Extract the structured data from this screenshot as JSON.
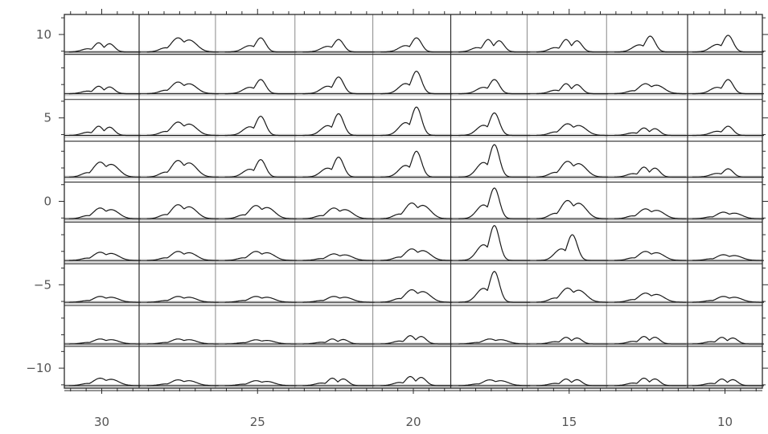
{
  "chart_data": {
    "type": "line",
    "title": "",
    "xlabel": "",
    "ylabel": "",
    "xlim": [
      31.2,
      8.8
    ],
    "ylim": [
      -11.2,
      11.2
    ],
    "x_reversed": true,
    "grid": true,
    "x_ticks": [
      {
        "value": 30,
        "label": "30"
      },
      {
        "value": 25,
        "label": "25"
      },
      {
        "value": 20,
        "label": "20"
      },
      {
        "value": 15,
        "label": "15"
      },
      {
        "value": 10,
        "label": "10"
      }
    ],
    "y_ticks": [
      {
        "value": 10,
        "label": "10"
      },
      {
        "value": 5,
        "label": "5"
      },
      {
        "value": 0,
        "label": "0"
      },
      {
        "value": -5,
        "label": "−5"
      },
      {
        "value": -10,
        "label": "−10"
      }
    ],
    "grid_cols": [
      28.8,
      26.35,
      23.8,
      21.3,
      18.8,
      16.35,
      13.8,
      11.2
    ],
    "grid_rows": [
      8.95,
      6.25,
      3.75,
      1.3,
      -1.1,
      -3.6,
      -6.1,
      -8.55,
      -11.2
    ],
    "panel_x": [
      29.9,
      27.4,
      24.9,
      22.4,
      19.9,
      17.4,
      14.9,
      12.4,
      9.9
    ],
    "panel_y": [
      8.95,
      6.45,
      3.95,
      1.45,
      -1.05,
      -3.55,
      -6.05,
      -8.55,
      -11.05
    ],
    "peak_height": [
      [
        0.55,
        0.85,
        0.85,
        0.75,
        0.85,
        0.75,
        0.75,
        0.95,
        1.0
      ],
      [
        0.45,
        0.7,
        0.85,
        1.0,
        1.35,
        0.85,
        0.6,
        0.6,
        0.85
      ],
      [
        0.55,
        0.8,
        1.15,
        1.3,
        1.7,
        1.35,
        0.7,
        0.45,
        0.55
      ],
      [
        0.9,
        1.0,
        1.05,
        1.2,
        1.55,
        1.95,
        0.95,
        0.6,
        0.5
      ],
      [
        0.65,
        0.85,
        0.8,
        0.65,
        0.95,
        1.85,
        1.1,
        0.6,
        0.4
      ],
      [
        0.5,
        0.55,
        0.55,
        0.4,
        0.7,
        2.1,
        1.55,
        0.55,
        0.35
      ],
      [
        0.35,
        0.35,
        0.35,
        0.35,
        0.75,
        1.85,
        0.85,
        0.55,
        0.35
      ],
      [
        0.3,
        0.3,
        0.25,
        0.3,
        0.5,
        0.3,
        0.4,
        0.45,
        0.4
      ],
      [
        0.45,
        0.35,
        0.3,
        0.45,
        0.55,
        0.35,
        0.4,
        0.45,
        0.4
      ]
    ],
    "peak_shape": [
      [
        "double",
        "broad",
        "single",
        "single",
        "single",
        "double",
        "double",
        "single",
        "single"
      ],
      [
        "double",
        "broad",
        "single",
        "single",
        "single",
        "single",
        "double",
        "broad",
        "single"
      ],
      [
        "double",
        "broad",
        "single",
        "single",
        "single",
        "single",
        "broad",
        "double",
        "single"
      ],
      [
        "broad",
        "broad",
        "single",
        "single",
        "single",
        "single",
        "broad",
        "double",
        "single"
      ],
      [
        "broad",
        "broad",
        "broad",
        "broad",
        "broad",
        "single",
        "broad",
        "broad",
        "broad"
      ],
      [
        "broad",
        "broad",
        "broad",
        "broad",
        "broad",
        "single",
        "single",
        "broad",
        "broad"
      ],
      [
        "broad",
        "broad",
        "broad",
        "broad",
        "broad",
        "single",
        "broad",
        "broad",
        "broad"
      ],
      [
        "broad",
        "broad",
        "broad",
        "double",
        "double",
        "broad",
        "double",
        "double",
        "double"
      ],
      [
        "broad",
        "broad",
        "broad",
        "double",
        "double",
        "broad",
        "double",
        "double",
        "double"
      ]
    ],
    "colors": {
      "line": "#1a1a1a",
      "grid": "#2b2b2b",
      "grid_light": "#888888",
      "baseline": "#bdbdbd",
      "tick_label": "#555555"
    }
  }
}
